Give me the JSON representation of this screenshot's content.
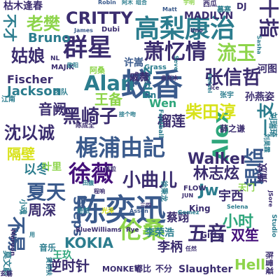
{
  "palette": {
    "navy": "#3b2d6f",
    "blue": "#3a5a8c",
    "teal": "#2c7d8e",
    "green": "#2fa67c",
    "lime": "#8dd44a",
    "yellow": "#d8e219",
    "purple": "#44107a"
  },
  "words": [
    {
      "text": "陈奕迅",
      "color": "blue"
    },
    {
      "text": "蛟香",
      "color": "blue"
    },
    {
      "text": "高梨康治",
      "color": "teal"
    },
    {
      "text": "群星",
      "color": "navy"
    },
    {
      "text": "梶浦由記",
      "color": "blue"
    },
    {
      "text": "徐薇",
      "color": "purple"
    },
    {
      "text": "伦桑",
      "color": "lime"
    },
    {
      "text": "Alex",
      "color": "green"
    },
    {
      "text": "夏天",
      "color": "blue"
    },
    {
      "text": "萧忆情",
      "color": "navy"
    },
    {
      "text": "Alan",
      "color": "teal"
    },
    {
      "text": "黑崎子",
      "color": "navy"
    },
    {
      "text": "张信哲",
      "color": "navy"
    },
    {
      "text": "十指",
      "color": "navy"
    },
    {
      "text": "CRITTY",
      "color": "navy"
    },
    {
      "text": "老樊",
      "color": "lime"
    },
    {
      "text": "姑娘",
      "color": "navy"
    },
    {
      "text": "流玉",
      "color": "lime"
    },
    {
      "text": "柴田淳",
      "color": "yellow"
    },
    {
      "text": "沈以诚",
      "color": "navy"
    },
    {
      "text": "小曲儿",
      "color": "navy"
    },
    {
      "text": "Walker",
      "color": "navy"
    },
    {
      "text": "林志炫",
      "color": "navy"
    },
    {
      "text": "Jw",
      "color": "teal"
    },
    {
      "text": "银临",
      "color": "blue"
    },
    {
      "text": "小时",
      "color": "green"
    },
    {
      "text": "不易",
      "color": "blue"
    },
    {
      "text": "KOKIA",
      "color": "teal"
    },
    {
      "text": "五音",
      "color": "navy"
    },
    {
      "text": "双笙",
      "color": "purple"
    },
    {
      "text": "逆时针",
      "color": "navy"
    },
    {
      "text": "宇西",
      "color": "navy"
    },
    {
      "text": "音阙",
      "color": "navy"
    },
    {
      "text": "隔壁",
      "color": "yellow"
    },
    {
      "text": "以冬",
      "color": "teal"
    },
    {
      "text": "Bruno",
      "color": "teal"
    },
    {
      "text": "榴莲",
      "color": "navy"
    },
    {
      "text": "Jackson",
      "color": "teal"
    },
    {
      "text": "Fischer",
      "color": "navy"
    },
    {
      "text": "Steps",
      "color": "blue"
    },
    {
      "text": "周深",
      "color": "navy"
    },
    {
      "text": "李柄",
      "color": "navy"
    },
    {
      "text": "蔡翊",
      "color": "navy"
    },
    {
      "text": "一支",
      "color": "teal"
    },
    {
      "text": "Hell",
      "color": "lime"
    },
    {
      "text": "王备",
      "color": "lime"
    },
    {
      "text": "Wen",
      "color": "green"
    },
    {
      "text": "Zedd",
      "color": "teal"
    },
    {
      "text": "许嵩",
      "color": "blue"
    },
    {
      "text": "戚薇",
      "color": "navy"
    },
    {
      "text": "河图",
      "color": "navy"
    },
    {
      "text": "孙燕姿",
      "color": "navy"
    },
    {
      "text": "不才",
      "color": "teal"
    },
    {
      "text": "MADILYN",
      "color": "navy"
    },
    {
      "text": "枯木逢春",
      "color": "navy"
    },
    {
      "text": "Robin",
      "color": "blue"
    },
    {
      "text": "Matt",
      "color": "blue"
    },
    {
      "text": "DJ",
      "color": "navy"
    },
    {
      "text": "Dubi",
      "color": "navy"
    },
    {
      "text": "James",
      "color": "blue"
    },
    {
      "text": "MAJIK",
      "color": "navy"
    },
    {
      "text": "阿桑",
      "color": "lime"
    },
    {
      "text": "团队",
      "color": "teal"
    },
    {
      "text": "江南",
      "color": "teal"
    },
    {
      "text": "Lin",
      "color": "teal"
    },
    {
      "text": "叶里",
      "color": "lime"
    },
    {
      "text": "王玖",
      "color": "green"
    },
    {
      "text": "音乐",
      "color": "teal"
    },
    {
      "text": "Gifty",
      "color": "navy"
    },
    {
      "text": "李荣浩",
      "color": "teal"
    },
    {
      "text": "King",
      "color": "navy"
    },
    {
      "text": "BlueWilliams",
      "color": "navy"
    },
    {
      "text": "Rye",
      "color": "navy"
    },
    {
      "text": "Slaughter",
      "color": "navy"
    },
    {
      "text": "MONKEY",
      "color": "navy"
    },
    {
      "text": "嘟比",
      "color": "navy"
    },
    {
      "text": "不分",
      "color": "navy"
    },
    {
      "text": "天门",
      "color": "lime"
    },
    {
      "text": "FLOW",
      "color": "navy"
    },
    {
      "text": "小魂",
      "color": "teal"
    },
    {
      "text": "Two",
      "color": "blue"
    },
    {
      "text": "莫文蔚",
      "color": "teal"
    },
    {
      "text": "陈雪凝",
      "color": "navy"
    },
    {
      "text": "Assen",
      "color": "blue"
    },
    {
      "text": "Selena",
      "color": "teal"
    },
    {
      "text": "Gomez",
      "color": "teal"
    },
    {
      "text": "JUN",
      "color": "navy"
    },
    {
      "text": "播放",
      "color": "navy"
    },
    {
      "text": "薛之谦",
      "color": "navy"
    },
    {
      "text": "刘瑞琦",
      "color": "teal"
    },
    {
      "text": "张宇",
      "color": "teal"
    },
    {
      "text": "Grass",
      "color": "teal"
    },
    {
      "text": "阿木",
      "color": "teal"
    },
    {
      "text": "组合",
      "color": "teal"
    },
    {
      "text": "宇明",
      "color": "lime"
    },
    {
      "text": "西瓜",
      "color": "navy"
    },
    {
      "text": "慕寒",
      "color": "teal"
    },
    {
      "text": "田馥",
      "color": "teal"
    },
    {
      "text": "陈粒",
      "color": "navy"
    },
    {
      "text": "徐秉龙",
      "color": "teal"
    },
    {
      "text": "程响",
      "color": "navy"
    },
    {
      "text": "光泽",
      "color": "yellow"
    },
    {
      "text": "奇然",
      "color": "teal"
    },
    {
      "text": "三四",
      "color": "navy"
    },
    {
      "text": "刘昊霖",
      "color": "teal"
    },
    {
      "text": "用",
      "color": "teal"
    },
    {
      "text": "玄觞",
      "color": "navy"
    },
    {
      "text": "任然",
      "color": "navy"
    },
    {
      "text": "陈成全",
      "color": "navy"
    },
    {
      "text": "Football",
      "color": "teal"
    },
    {
      "text": "Studio",
      "color": "teal"
    },
    {
      "text": "Maroon",
      "color": "navy"
    },
    {
      "text": "JSore",
      "color": "navy"
    },
    {
      "text": "黄诗扶",
      "color": "teal"
    },
    {
      "text": "欧阳",
      "color": "teal"
    },
    {
      "text": "NL",
      "color": "navy"
    },
    {
      "text": "Ice",
      "color": "navy"
    },
    {
      "text": "曲肖冰",
      "color": "navy"
    },
    {
      "text": "接个吻",
      "color": "teal"
    },
    {
      "text": "Seve",
      "color": "teal"
    },
    {
      "text": "Heisei",
      "color": "teal"
    },
    {
      "text": "Uno",
      "color": "navy"
    },
    {
      "text": "Sasha",
      "color": "teal"
    }
  ]
}
